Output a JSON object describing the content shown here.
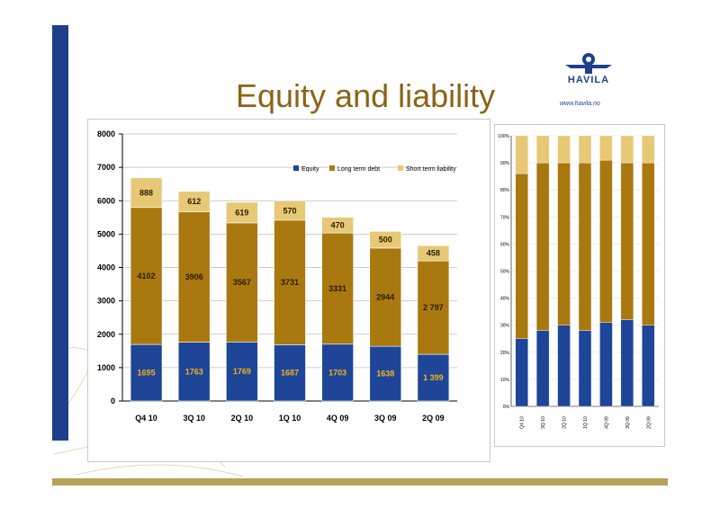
{
  "slide": {
    "title": "Equity and liability",
    "logo_text": "HAVILA",
    "logo_url": "www.havila.no"
  },
  "colors": {
    "equity": "#1e4598",
    "long_term_debt": "#a9780f",
    "short_term_liability": "#e7c875",
    "accent_bar": "#1e3f8c",
    "bottom_band": "#b8a055",
    "title": "#8a6417"
  },
  "chart_data": [
    {
      "type": "bar",
      "stacked": true,
      "categories": [
        "Q4 10",
        "3Q 10",
        "2Q 10",
        "1Q 10",
        "4Q 09",
        "3Q 09",
        "2Q 09"
      ],
      "series": [
        {
          "name": "Equity",
          "values": [
            1695,
            1763,
            1769,
            1687,
            1703,
            1638,
            1399
          ],
          "labels": [
            "1695",
            "1763",
            "1769",
            "1687",
            "1703",
            "1638",
            "1 399"
          ]
        },
        {
          "name": "Long term debt",
          "values": [
            4102,
            3906,
            3567,
            3731,
            3331,
            2944,
            2797
          ],
          "labels": [
            "4102",
            "3906",
            "3567",
            "3731",
            "3331",
            "2944",
            "2 797"
          ]
        },
        {
          "name": "Short term liability",
          "values": [
            888,
            612,
            619,
            570,
            470,
            500,
            458
          ],
          "labels": [
            "888",
            "612",
            "619",
            "570",
            "470",
            "500",
            "458"
          ]
        }
      ],
      "yticks": [
        "0",
        "1000",
        "2000",
        "3000",
        "4000",
        "5000",
        "6000",
        "7000",
        "8000"
      ],
      "ylim": [
        0,
        8000
      ],
      "legend": "top-right",
      "grid": true
    },
    {
      "type": "bar",
      "stacked": true,
      "percent": true,
      "categories": [
        "Q4 10",
        "3Q 10",
        "2Q 10",
        "1Q 10",
        "4Q 09",
        "3Q 09",
        "2Q 09"
      ],
      "series": [
        {
          "name": "Equity",
          "values": [
            25,
            28,
            30,
            28,
            31,
            32,
            30
          ]
        },
        {
          "name": "Long term debt",
          "values": [
            61,
            62,
            60,
            62,
            60,
            58,
            60
          ]
        },
        {
          "name": "Short term liability",
          "values": [
            14,
            10,
            10,
            10,
            9,
            10,
            10
          ]
        }
      ],
      "yticks": [
        "0%",
        "10%",
        "20%",
        "30%",
        "40%",
        "50%",
        "60%",
        "70%",
        "80%",
        "90%",
        "100%"
      ],
      "ylim": [
        0,
        100
      ]
    }
  ]
}
